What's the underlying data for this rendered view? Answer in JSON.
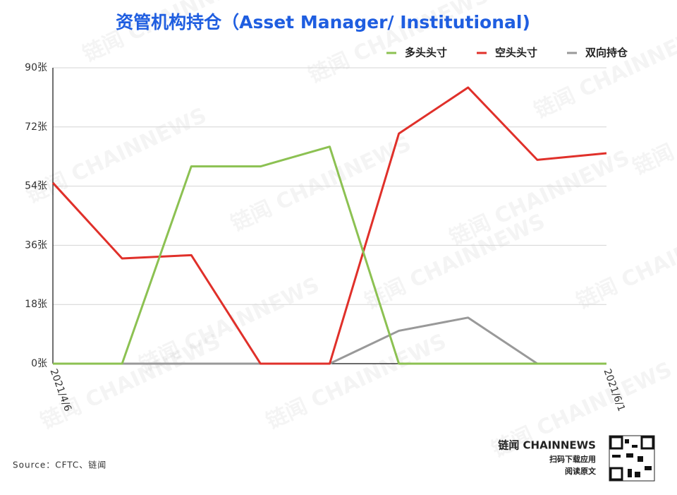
{
  "chart_data": {
    "type": "line",
    "title": "资管机构持仓（Asset Manager/ Institutional)",
    "categories": [
      "2021/4/6",
      null,
      null,
      null,
      null,
      null,
      null,
      null,
      "2021/6/1"
    ],
    "series": [
      {
        "name": "多头头寸",
        "color": "#8cc152",
        "values": [
          0,
          0,
          60,
          60,
          66,
          0,
          0,
          0,
          0
        ]
      },
      {
        "name": "空头头寸",
        "color": "#e0302a",
        "values": [
          55,
          32,
          33,
          0,
          0,
          70,
          84,
          62,
          64
        ]
      },
      {
        "name": "双向持仓",
        "color": "#999999",
        "values": [
          0,
          0,
          0,
          0,
          0,
          10,
          14,
          0,
          0
        ]
      }
    ],
    "ylim": [
      0,
      90
    ],
    "yticks": [
      {
        "value": 0,
        "label": "0张"
      },
      {
        "value": 18,
        "label": "18张"
      },
      {
        "value": 36,
        "label": "36张"
      },
      {
        "value": 54,
        "label": "54张"
      },
      {
        "value": 72,
        "label": "72张"
      },
      {
        "value": 90,
        "label": "90张"
      }
    ],
    "grid": true,
    "legend": "top-right",
    "source": "Source：CFTC、链闻",
    "logo_text": "链闻 CHAINNEWS",
    "logo_subtitle": [
      "扫码下载应用",
      "阅读原文"
    ],
    "watermark": "链闻 CHAINNEWS"
  }
}
